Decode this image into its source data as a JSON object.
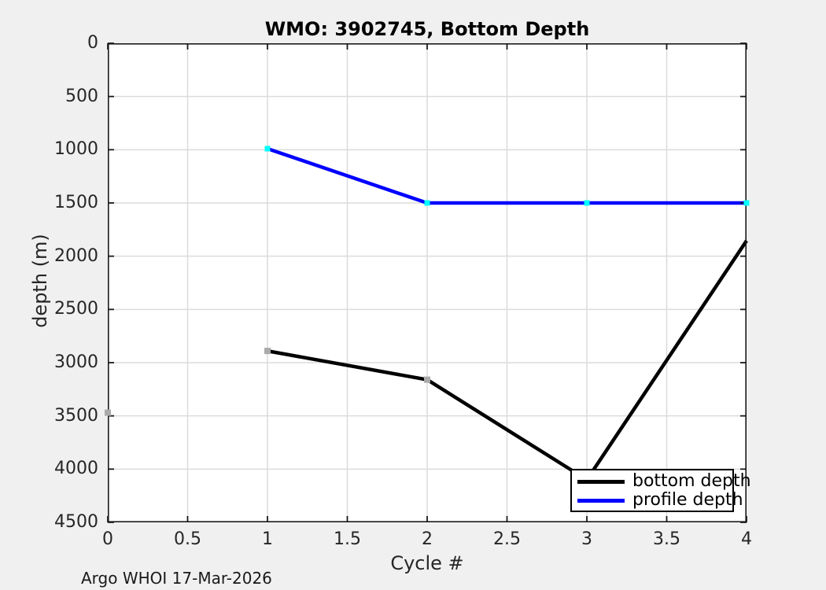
{
  "chart_data": {
    "type": "line",
    "title": "WMO: 3902745, Bottom Depth",
    "xlabel": "Cycle #",
    "ylabel": "depth (m)",
    "annotation": "Argo WHOI 17-Mar-2026",
    "x_range": [
      0,
      4
    ],
    "y_range": [
      0,
      4500
    ],
    "y_axis_reversed": true,
    "grid": true,
    "legend_position": "inside-bottom-right",
    "x_ticks": [
      0,
      0.5,
      1,
      1.5,
      2,
      2.5,
      3,
      3.5,
      4
    ],
    "x_tick_labels": [
      "0",
      "0.5",
      "1",
      "1.5",
      "2",
      "2.5",
      "3",
      "3.5",
      "4"
    ],
    "y_ticks": [
      0,
      500,
      1000,
      1500,
      2000,
      2500,
      3000,
      3500,
      4000,
      4500
    ],
    "y_tick_labels": [
      "0",
      "500",
      "1000",
      "1500",
      "2000",
      "2500",
      "3000",
      "3500",
      "4000",
      "4500"
    ],
    "series": [
      {
        "name": "bottom depth",
        "color": "#000000",
        "line_width": 4.5,
        "line_points": [
          [
            1,
            2890
          ],
          [
            2,
            3160
          ],
          [
            3,
            4100
          ],
          [
            4,
            1855
          ]
        ],
        "marker_shape": "square",
        "marker_color": "#AAAAAA",
        "marker_size": 8,
        "marker_points": [
          [
            0,
            3470
          ],
          [
            1,
            2890
          ],
          [
            2,
            3160
          ]
        ]
      },
      {
        "name": "profile depth",
        "color": "#0000FF",
        "line_width": 4.5,
        "line_points": [
          [
            1,
            990
          ],
          [
            2,
            1500
          ],
          [
            3,
            1500
          ],
          [
            4,
            1500
          ]
        ],
        "marker_shape": "square",
        "marker_color": "#00FFFF",
        "marker_size": 7,
        "marker_points": [
          [
            1,
            990
          ],
          [
            2,
            1500
          ],
          [
            3,
            1500
          ],
          [
            4,
            1500
          ]
        ]
      }
    ],
    "style": {
      "figure_background": "#F0F0F0",
      "plot_background": "#FFFFFF",
      "grid_color": "#DBDBDB",
      "axis_color": "#1A1A1A",
      "tick_text_color": "#262626",
      "tick_direction": "in",
      "tick_length": 8
    }
  }
}
